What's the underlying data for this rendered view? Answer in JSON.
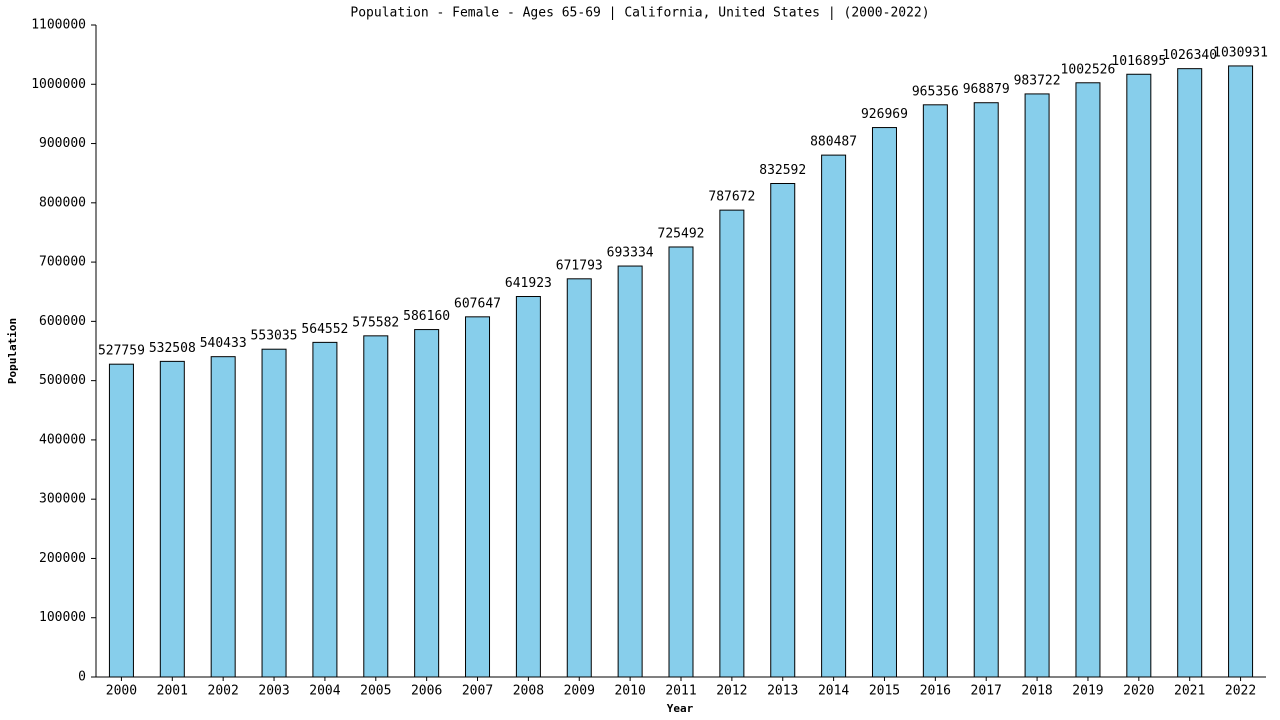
{
  "chart_data": {
    "type": "bar",
    "title": "Population - Female - Ages 65-69 | California, United States |  (2000-2022)",
    "x_label": "Year",
    "y_label": "Population",
    "categories": [
      "2000",
      "2001",
      "2002",
      "2003",
      "2004",
      "2005",
      "2006",
      "2007",
      "2008",
      "2009",
      "2010",
      "2011",
      "2012",
      "2013",
      "2014",
      "2015",
      "2016",
      "2017",
      "2018",
      "2019",
      "2020",
      "2021",
      "2022"
    ],
    "values": [
      527759,
      532508,
      540433,
      553035,
      564552,
      575582,
      586160,
      607647,
      641923,
      671793,
      693334,
      725492,
      787672,
      832592,
      880487,
      926969,
      965356,
      968879,
      983722,
      1002526,
      1016895,
      1026340,
      1030931
    ],
    "color": "#87ceeb",
    "ylim": [
      0,
      1100000
    ],
    "yticks": [
      0,
      100000,
      200000,
      300000,
      400000,
      500000,
      600000,
      700000,
      800000,
      900000,
      1000000,
      1100000
    ],
    "grid": false
  }
}
